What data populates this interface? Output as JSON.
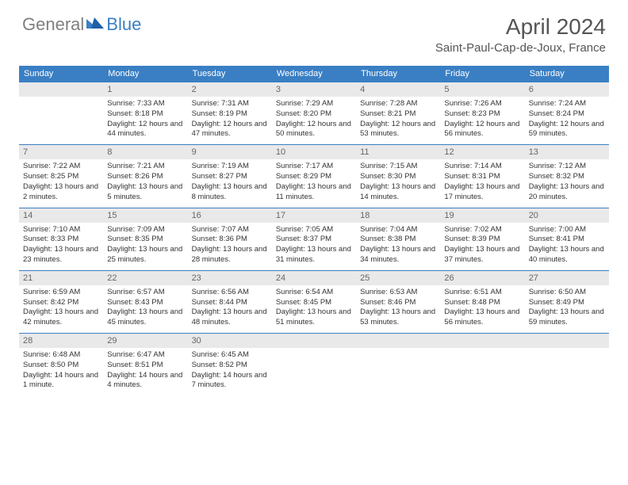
{
  "brand": {
    "general": "General",
    "blue": "Blue"
  },
  "title": "April 2024",
  "location": "Saint-Paul-Cap-de-Joux, France",
  "colors": {
    "header_bg": "#3a7fc4",
    "header_text": "#ffffff",
    "daynum_bg": "#e9e9e9",
    "body_text": "#333333",
    "logo_gray": "#808080",
    "logo_blue": "#3a7fc4",
    "rule": "#3a7fc4"
  },
  "fonts": {
    "title_size": 28,
    "location_size": 15,
    "dow_size": 11,
    "daynum_size": 11,
    "body_size": 9.5
  },
  "dow": [
    "Sunday",
    "Monday",
    "Tuesday",
    "Wednesday",
    "Thursday",
    "Friday",
    "Saturday"
  ],
  "weeks": [
    [
      null,
      {
        "n": "1",
        "sr": "7:33 AM",
        "ss": "8:18 PM",
        "dl": "12 hours and 44 minutes."
      },
      {
        "n": "2",
        "sr": "7:31 AM",
        "ss": "8:19 PM",
        "dl": "12 hours and 47 minutes."
      },
      {
        "n": "3",
        "sr": "7:29 AM",
        "ss": "8:20 PM",
        "dl": "12 hours and 50 minutes."
      },
      {
        "n": "4",
        "sr": "7:28 AM",
        "ss": "8:21 PM",
        "dl": "12 hours and 53 minutes."
      },
      {
        "n": "5",
        "sr": "7:26 AM",
        "ss": "8:23 PM",
        "dl": "12 hours and 56 minutes."
      },
      {
        "n": "6",
        "sr": "7:24 AM",
        "ss": "8:24 PM",
        "dl": "12 hours and 59 minutes."
      }
    ],
    [
      {
        "n": "7",
        "sr": "7:22 AM",
        "ss": "8:25 PM",
        "dl": "13 hours and 2 minutes."
      },
      {
        "n": "8",
        "sr": "7:21 AM",
        "ss": "8:26 PM",
        "dl": "13 hours and 5 minutes."
      },
      {
        "n": "9",
        "sr": "7:19 AM",
        "ss": "8:27 PM",
        "dl": "13 hours and 8 minutes."
      },
      {
        "n": "10",
        "sr": "7:17 AM",
        "ss": "8:29 PM",
        "dl": "13 hours and 11 minutes."
      },
      {
        "n": "11",
        "sr": "7:15 AM",
        "ss": "8:30 PM",
        "dl": "13 hours and 14 minutes."
      },
      {
        "n": "12",
        "sr": "7:14 AM",
        "ss": "8:31 PM",
        "dl": "13 hours and 17 minutes."
      },
      {
        "n": "13",
        "sr": "7:12 AM",
        "ss": "8:32 PM",
        "dl": "13 hours and 20 minutes."
      }
    ],
    [
      {
        "n": "14",
        "sr": "7:10 AM",
        "ss": "8:33 PM",
        "dl": "13 hours and 23 minutes."
      },
      {
        "n": "15",
        "sr": "7:09 AM",
        "ss": "8:35 PM",
        "dl": "13 hours and 25 minutes."
      },
      {
        "n": "16",
        "sr": "7:07 AM",
        "ss": "8:36 PM",
        "dl": "13 hours and 28 minutes."
      },
      {
        "n": "17",
        "sr": "7:05 AM",
        "ss": "8:37 PM",
        "dl": "13 hours and 31 minutes."
      },
      {
        "n": "18",
        "sr": "7:04 AM",
        "ss": "8:38 PM",
        "dl": "13 hours and 34 minutes."
      },
      {
        "n": "19",
        "sr": "7:02 AM",
        "ss": "8:39 PM",
        "dl": "13 hours and 37 minutes."
      },
      {
        "n": "20",
        "sr": "7:00 AM",
        "ss": "8:41 PM",
        "dl": "13 hours and 40 minutes."
      }
    ],
    [
      {
        "n": "21",
        "sr": "6:59 AM",
        "ss": "8:42 PM",
        "dl": "13 hours and 42 minutes."
      },
      {
        "n": "22",
        "sr": "6:57 AM",
        "ss": "8:43 PM",
        "dl": "13 hours and 45 minutes."
      },
      {
        "n": "23",
        "sr": "6:56 AM",
        "ss": "8:44 PM",
        "dl": "13 hours and 48 minutes."
      },
      {
        "n": "24",
        "sr": "6:54 AM",
        "ss": "8:45 PM",
        "dl": "13 hours and 51 minutes."
      },
      {
        "n": "25",
        "sr": "6:53 AM",
        "ss": "8:46 PM",
        "dl": "13 hours and 53 minutes."
      },
      {
        "n": "26",
        "sr": "6:51 AM",
        "ss": "8:48 PM",
        "dl": "13 hours and 56 minutes."
      },
      {
        "n": "27",
        "sr": "6:50 AM",
        "ss": "8:49 PM",
        "dl": "13 hours and 59 minutes."
      }
    ],
    [
      {
        "n": "28",
        "sr": "6:48 AM",
        "ss": "8:50 PM",
        "dl": "14 hours and 1 minute."
      },
      {
        "n": "29",
        "sr": "6:47 AM",
        "ss": "8:51 PM",
        "dl": "14 hours and 4 minutes."
      },
      {
        "n": "30",
        "sr": "6:45 AM",
        "ss": "8:52 PM",
        "dl": "14 hours and 7 minutes."
      },
      null,
      null,
      null,
      null
    ]
  ],
  "labels": {
    "sunrise": "Sunrise: ",
    "sunset": "Sunset: ",
    "daylight": "Daylight: "
  }
}
